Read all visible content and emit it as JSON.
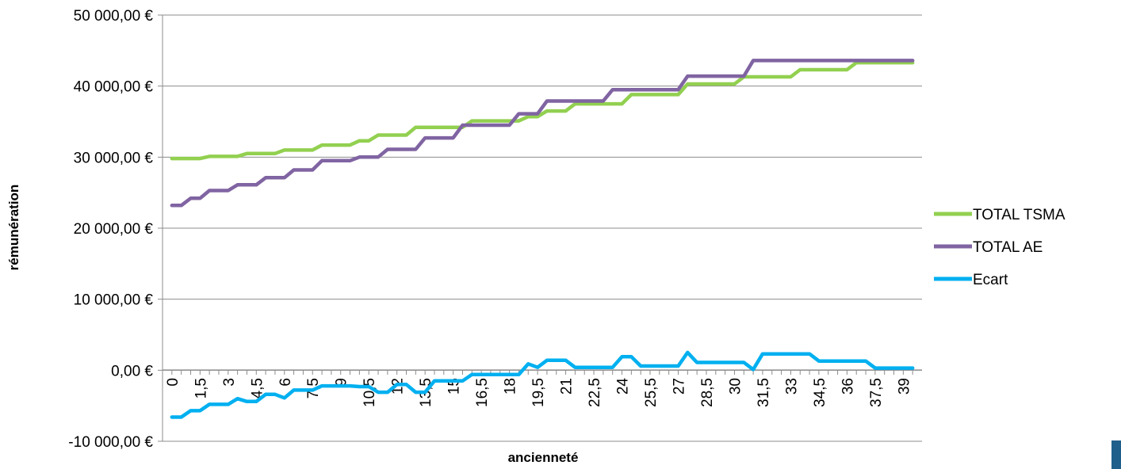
{
  "chart_data": {
    "type": "line",
    "title": "",
    "xlabel": "ancienneté",
    "ylabel": "rémunération",
    "ylim": [
      -10000,
      50000
    ],
    "y_ticks": [
      -10000,
      0,
      10000,
      20000,
      30000,
      40000,
      50000
    ],
    "y_tick_labels": [
      "-10 000,00 €",
      "0,00 €",
      "10 000,00 €",
      "20 000,00 €",
      "30 000,00 €",
      "40 000,00 €",
      "50 000,00 €"
    ],
    "x_tick_labels": [
      "0",
      "1,5",
      "3",
      "4,5",
      "6",
      "7,5",
      "9",
      "10,5",
      "12",
      "13,5",
      "15",
      "16,5",
      "18",
      "19,5",
      "21",
      "22,5",
      "24",
      "25,5",
      "27",
      "28,5",
      "30",
      "31,5",
      "33",
      "34,5",
      "36",
      "37,5",
      "39"
    ],
    "grid": "horizontal",
    "legend": "right",
    "x": [
      0,
      0.5,
      1,
      1.5,
      2,
      2.5,
      3,
      3.5,
      4,
      4.5,
      5,
      5.5,
      6,
      6.5,
      7,
      7.5,
      8,
      8.5,
      9,
      9.5,
      10,
      10.5,
      11,
      11.5,
      12,
      12.5,
      13,
      13.5,
      14,
      14.5,
      15,
      15.5,
      16,
      16.5,
      17,
      17.5,
      18,
      18.5,
      19,
      19.5,
      20,
      20.5,
      21,
      21.5,
      22,
      22.5,
      23,
      23.5,
      24,
      24.5,
      25,
      25.5,
      26,
      26.5,
      27,
      27.5,
      28,
      28.5,
      29,
      29.5,
      30,
      30.5,
      31,
      31.5,
      32,
      32.5,
      33,
      33.5,
      34,
      34.5,
      35,
      35.5,
      36,
      36.5,
      37,
      37.5,
      38,
      38.5,
      39,
      39.5
    ],
    "series": [
      {
        "name": "TOTAL TSMA",
        "color": "#92d050",
        "values": [
          29800,
          29800,
          29800,
          29800,
          30100,
          30100,
          30100,
          30100,
          30500,
          30500,
          30500,
          30500,
          31000,
          31000,
          31000,
          31000,
          31700,
          31700,
          31700,
          31700,
          32300,
          32300,
          33100,
          33100,
          33100,
          33100,
          34200,
          34200,
          34200,
          34200,
          34200,
          34200,
          35100,
          35100,
          35100,
          35100,
          35100,
          35100,
          35700,
          35700,
          36500,
          36500,
          36500,
          37500,
          37500,
          37500,
          37500,
          37500,
          37500,
          38800,
          38800,
          38800,
          38800,
          38800,
          38800,
          40300,
          40300,
          40300,
          40300,
          40300,
          40300,
          41300,
          41300,
          41300,
          41300,
          41300,
          41300,
          42300,
          42300,
          42300,
          42300,
          42300,
          42300,
          43300,
          43300,
          43300,
          43300,
          43300,
          43300,
          43300
        ]
      },
      {
        "name": "TOTAL AE",
        "color": "#8064a2",
        "values": [
          23200,
          23200,
          24200,
          24200,
          25300,
          25300,
          25300,
          26100,
          26100,
          26100,
          27100,
          27100,
          27100,
          28200,
          28200,
          28200,
          29500,
          29500,
          29500,
          29500,
          30000,
          30000,
          30000,
          31100,
          31100,
          31100,
          31100,
          32700,
          32700,
          32700,
          32700,
          34500,
          34500,
          34500,
          34500,
          34500,
          34500,
          36100,
          36100,
          36100,
          37900,
          37900,
          37900,
          37900,
          37900,
          37900,
          37900,
          39500,
          39500,
          39500,
          39500,
          39500,
          39500,
          39500,
          39500,
          41400,
          41400,
          41400,
          41400,
          41400,
          41400,
          41400,
          43600,
          43600,
          43600,
          43600,
          43600,
          43600,
          43600,
          43600,
          43600,
          43600,
          43600,
          43600,
          43600,
          43600,
          43600,
          43600,
          43600,
          43600
        ]
      },
      {
        "name": "Ecart",
        "color": "#00b0f0",
        "values": [
          -6600,
          -6600,
          -5700,
          -5700,
          -4800,
          -4800,
          -4800,
          -4000,
          -4400,
          -4400,
          -3400,
          -3400,
          -3900,
          -2800,
          -2800,
          -2800,
          -2200,
          -2200,
          -2200,
          -2200,
          -2300,
          -2300,
          -3100,
          -3100,
          -2000,
          -2000,
          -3100,
          -3100,
          -1500,
          -1500,
          -1500,
          -1500,
          -600,
          -600,
          -600,
          -600,
          -600,
          -600,
          900,
          400,
          1400,
          1400,
          1400,
          400,
          400,
          400,
          400,
          400,
          1900,
          1900,
          600,
          600,
          600,
          600,
          600,
          2500,
          1100,
          1100,
          1100,
          1100,
          1100,
          1100,
          100,
          2300,
          2300,
          2300,
          2300,
          2300,
          2300,
          1300,
          1300,
          1300,
          1300,
          1300,
          1300,
          300,
          300,
          300,
          300,
          300
        ]
      }
    ]
  },
  "corner_mark_color": "#1f5f8b"
}
